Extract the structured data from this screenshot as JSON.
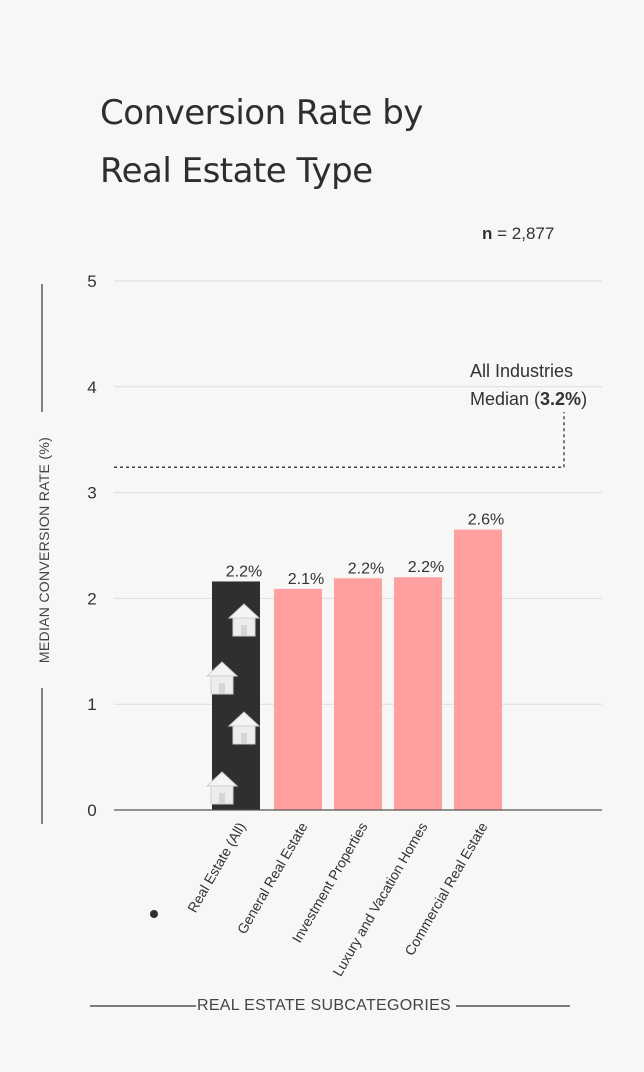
{
  "chart_data": {
    "type": "bar",
    "title_lines": [
      "Conversion Rate by",
      "Real Estate Type"
    ],
    "n_label": "n",
    "n_value": "= 2,877",
    "ylabel": "MEDIAN CONVERSION RATE (%)",
    "xlabel": "REAL ESTATE SUBCATEGORIES",
    "ylim": [
      0,
      5
    ],
    "yticks": [
      0,
      1,
      2,
      3,
      4,
      5
    ],
    "categories": [
      "Real Estate (All)",
      "General Real Estate",
      "Investment Properties",
      "Luxury and Vacation Homes",
      "Commercial Real Estate"
    ],
    "values": [
      2.16,
      2.09,
      2.19,
      2.2,
      2.65
    ],
    "value_labels": [
      "2.2%",
      "2.1%",
      "2.2%",
      "2.2%",
      "2.6%"
    ],
    "highlight_index": 0,
    "reference_line": {
      "value": 3.24,
      "label_line1": "All Industries",
      "label_line2_prefix": "Median (",
      "label_line2_bold": "3.2%",
      "label_line2_suffix": ")"
    },
    "colors": {
      "bar": "#ff9f9f",
      "highlight_bar": "#2f2f2f",
      "grid": "#dcdcdc",
      "axis": "#555555"
    }
  }
}
